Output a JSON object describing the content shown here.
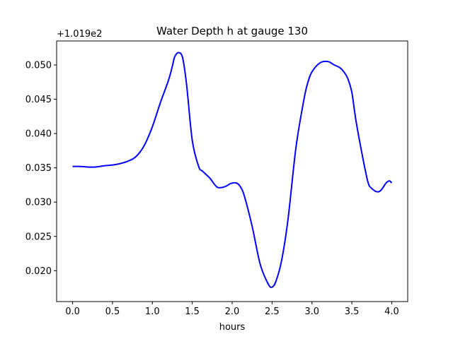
{
  "chart_data": {
    "type": "line",
    "title": "Water Depth h at gauge 130",
    "xlabel": "hours",
    "ylabel": "",
    "offset_text": "+1.019e2",
    "xlim": [
      -0.2,
      4.2
    ],
    "ylim": [
      0.0155,
      0.0535
    ],
    "xticks": [
      0.0,
      0.5,
      1.0,
      1.5,
      2.0,
      2.5,
      3.0,
      3.5,
      4.0
    ],
    "xtick_labels": [
      "0.0",
      "0.5",
      "1.0",
      "1.5",
      "2.0",
      "2.5",
      "3.0",
      "3.5",
      "4.0"
    ],
    "yticks": [
      0.02,
      0.025,
      0.03,
      0.035,
      0.04,
      0.045,
      0.05
    ],
    "ytick_labels": [
      "0.020",
      "0.025",
      "0.030",
      "0.035",
      "0.040",
      "0.045",
      "0.050"
    ],
    "grid": false,
    "color": "#0000ff",
    "series": [
      {
        "x": [
          0.0,
          0.1,
          0.25,
          0.4,
          0.55,
          0.7,
          0.8,
          0.9,
          1.0,
          1.1,
          1.2,
          1.25,
          1.28,
          1.33,
          1.38,
          1.43,
          1.5,
          1.58,
          1.63,
          1.72,
          1.8,
          1.85,
          1.92,
          1.98,
          2.05,
          2.1,
          2.15,
          2.25,
          2.35,
          2.45,
          2.5,
          2.55,
          2.62,
          2.7,
          2.8,
          2.9,
          2.95,
          3.0,
          3.1,
          3.2,
          3.28,
          3.35,
          3.4,
          3.45,
          3.5,
          3.55,
          3.62,
          3.7,
          3.75,
          3.82,
          3.87,
          3.93,
          3.97,
          4.0
        ],
        "y": [
          0.0352,
          0.0352,
          0.0351,
          0.0353,
          0.0355,
          0.036,
          0.0367,
          0.0383,
          0.041,
          0.0445,
          0.0477,
          0.0498,
          0.0512,
          0.0518,
          0.051,
          0.047,
          0.039,
          0.0352,
          0.0345,
          0.0335,
          0.0323,
          0.0321,
          0.0323,
          0.0327,
          0.0328,
          0.0323,
          0.031,
          0.0265,
          0.021,
          0.0181,
          0.0176,
          0.0185,
          0.0215,
          0.0275,
          0.038,
          0.045,
          0.0475,
          0.049,
          0.0503,
          0.0505,
          0.05,
          0.0496,
          0.049,
          0.048,
          0.046,
          0.042,
          0.0375,
          0.033,
          0.032,
          0.0315,
          0.0318,
          0.0328,
          0.0331,
          0.0328
        ]
      }
    ]
  }
}
